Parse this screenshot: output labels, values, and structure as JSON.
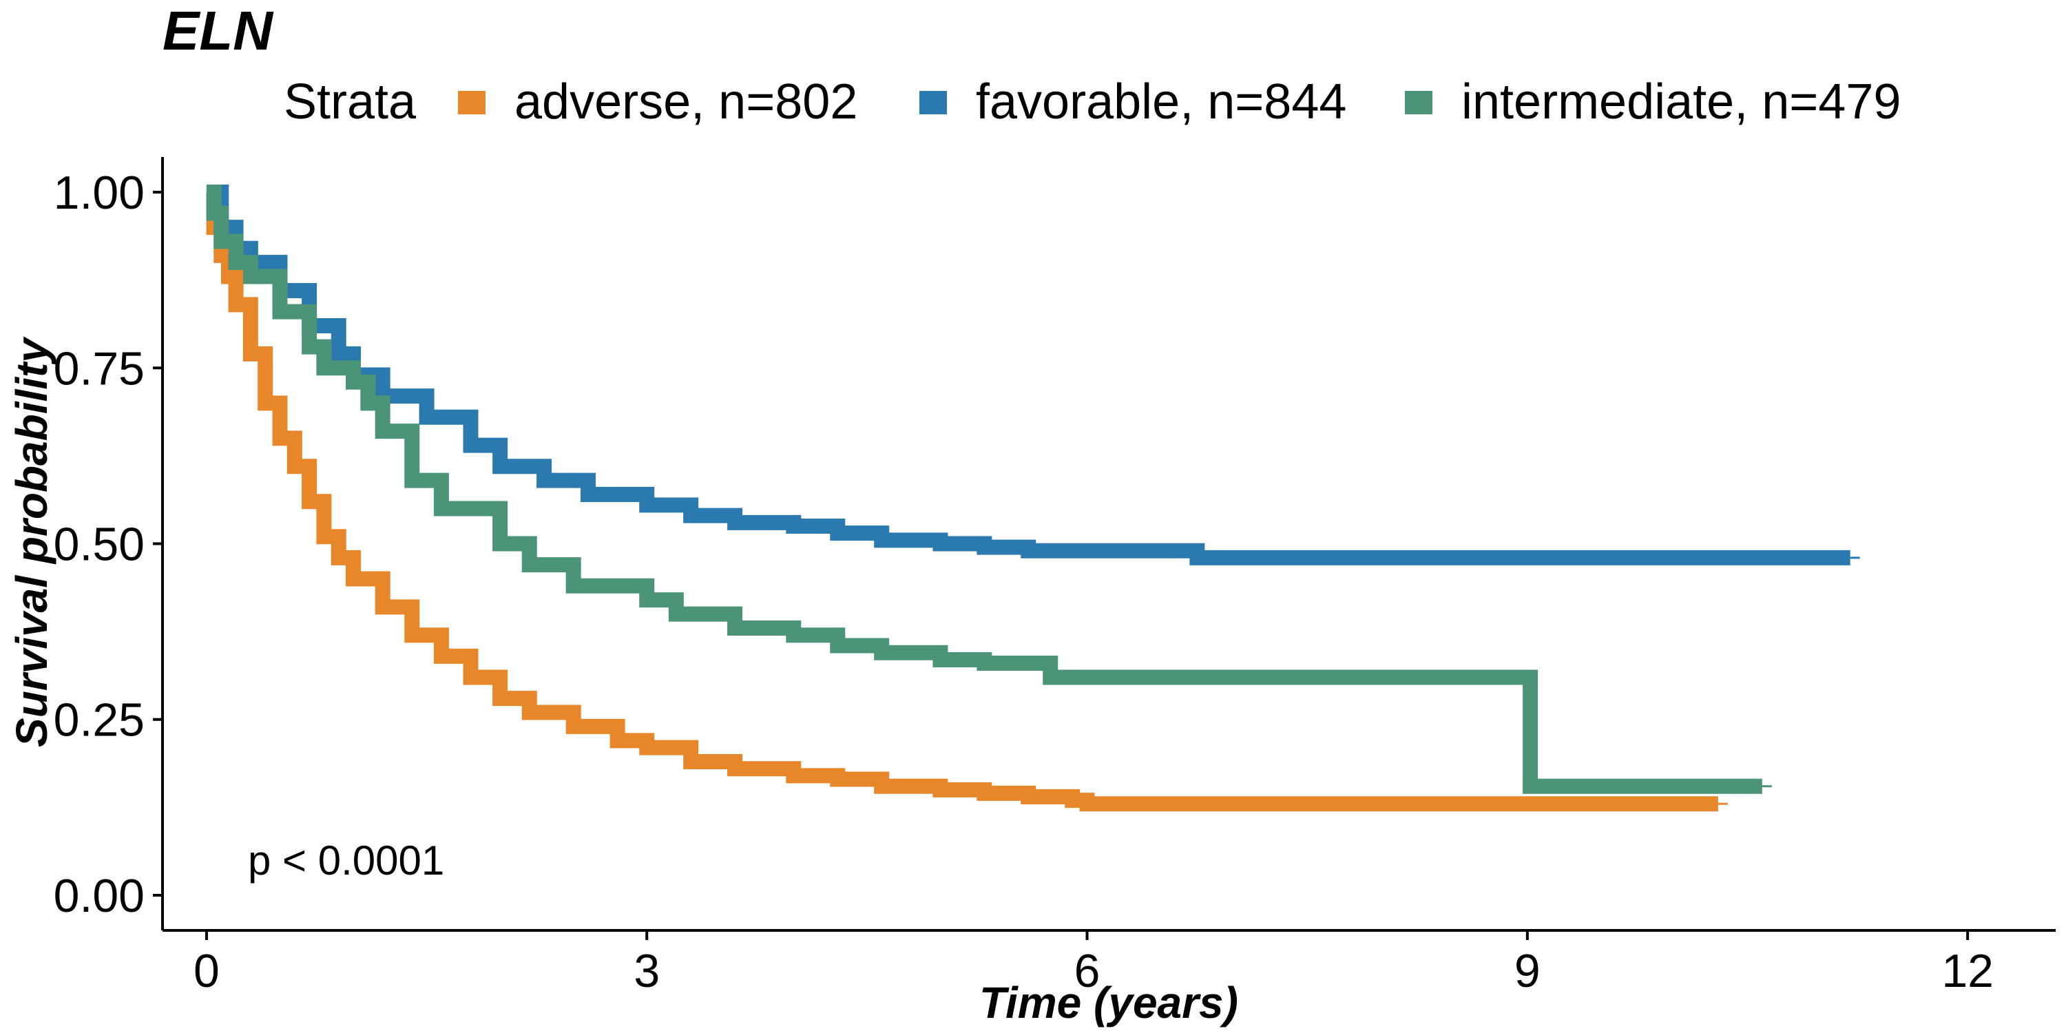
{
  "chart_data": {
    "type": "line",
    "title": "ELN",
    "legend_title": "Strata",
    "legend_position": "top",
    "xlabel": "Time (years)",
    "ylabel": "Survival probability",
    "xlim": [
      -0.3,
      12.6
    ],
    "ylim": [
      -0.05,
      1.05
    ],
    "xticks": [
      0,
      3,
      6,
      9,
      12
    ],
    "xtick_labels": [
      "0",
      "3",
      "6",
      "9",
      "12"
    ],
    "yticks": [
      0,
      0.25,
      0.5,
      0.75,
      1.0
    ],
    "ytick_labels": [
      "0.00",
      "0.25",
      "0.50",
      "0.75",
      "1.00"
    ],
    "grid": false,
    "annotation": "p < 0.0001",
    "series": [
      {
        "name": "adverse, n=802",
        "color": "#E8872A",
        "x": [
          0,
          0.05,
          0.1,
          0.15,
          0.2,
          0.3,
          0.4,
          0.5,
          0.6,
          0.7,
          0.8,
          0.9,
          1.0,
          1.2,
          1.4,
          1.6,
          1.8,
          2.0,
          2.2,
          2.5,
          2.8,
          3.0,
          3.3,
          3.6,
          4.0,
          4.3,
          4.6,
          5.0,
          5.3,
          5.6,
          5.9,
          6.0,
          6.5,
          7.0,
          8.0,
          9.0,
          10.0,
          10.3
        ],
        "y": [
          1.0,
          0.95,
          0.91,
          0.88,
          0.84,
          0.77,
          0.7,
          0.65,
          0.61,
          0.56,
          0.51,
          0.48,
          0.45,
          0.41,
          0.37,
          0.34,
          0.31,
          0.28,
          0.26,
          0.24,
          0.22,
          0.21,
          0.19,
          0.18,
          0.17,
          0.165,
          0.155,
          0.15,
          0.145,
          0.14,
          0.135,
          0.13,
          0.13,
          0.13,
          0.13,
          0.13,
          0.13,
          0.13
        ]
      },
      {
        "name": "favorable, n=844",
        "color": "#2A7AB0",
        "x": [
          0,
          0.1,
          0.2,
          0.3,
          0.5,
          0.7,
          0.9,
          1.0,
          1.2,
          1.5,
          1.8,
          2.0,
          2.3,
          2.6,
          3.0,
          3.3,
          3.6,
          4.0,
          4.3,
          4.6,
          5.0,
          5.3,
          5.6,
          6.0,
          6.5,
          6.7,
          6.75,
          8.0,
          9.0,
          10.0,
          11.2
        ],
        "y": [
          1.0,
          0.95,
          0.92,
          0.9,
          0.86,
          0.81,
          0.77,
          0.74,
          0.71,
          0.68,
          0.64,
          0.61,
          0.59,
          0.57,
          0.555,
          0.54,
          0.53,
          0.525,
          0.515,
          0.505,
          0.5,
          0.495,
          0.49,
          0.49,
          0.49,
          0.49,
          0.48,
          0.48,
          0.48,
          0.48,
          0.48
        ]
      },
      {
        "name": "intermediate, n=479",
        "color": "#4B9478",
        "x": [
          0,
          0.05,
          0.1,
          0.2,
          0.3,
          0.5,
          0.7,
          0.8,
          1.0,
          1.1,
          1.2,
          1.4,
          1.6,
          2.0,
          2.2,
          2.5,
          3.0,
          3.2,
          3.6,
          4.0,
          4.3,
          4.6,
          5.0,
          5.3,
          5.7,
          5.75,
          8.5,
          9.0,
          9.02,
          10.6
        ],
        "y": [
          1.0,
          0.97,
          0.93,
          0.9,
          0.88,
          0.83,
          0.78,
          0.75,
          0.73,
          0.7,
          0.66,
          0.59,
          0.55,
          0.5,
          0.47,
          0.44,
          0.42,
          0.4,
          0.38,
          0.37,
          0.355,
          0.345,
          0.335,
          0.33,
          0.33,
          0.31,
          0.31,
          0.31,
          0.155,
          0.155
        ]
      }
    ]
  }
}
